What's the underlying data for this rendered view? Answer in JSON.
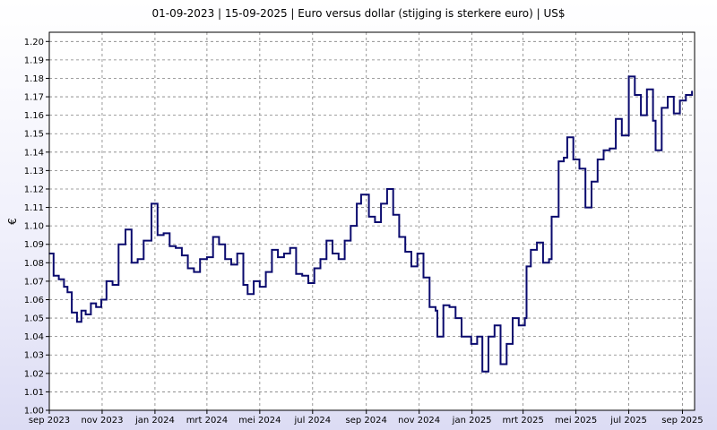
{
  "chart_data": {
    "type": "line",
    "title": "01-09-2023 | 15-09-2025 | Euro versus dollar (stijging is sterkere euro) | US$",
    "xlabel": "",
    "ylabel": "€",
    "ylim": [
      1.0,
      1.205
    ],
    "yticks": [
      "1.00",
      "1.01",
      "1.02",
      "1.03",
      "1.04",
      "1.05",
      "1.06",
      "1.07",
      "1.08",
      "1.09",
      "1.10",
      "1.11",
      "1.12",
      "1.13",
      "1.14",
      "1.15",
      "1.16",
      "1.17",
      "1.18",
      "1.19",
      "1.20"
    ],
    "xlim": [
      "2023-09-01",
      "2025-09-15"
    ],
    "xticks": [
      {
        "date": "2023-09-01",
        "label": "sep 2023"
      },
      {
        "date": "2023-11-01",
        "label": "nov 2023"
      },
      {
        "date": "2024-01-01",
        "label": "jan 2024"
      },
      {
        "date": "2024-03-01",
        "label": "mrt 2024"
      },
      {
        "date": "2024-05-01",
        "label": "mei 2024"
      },
      {
        "date": "2024-07-01",
        "label": "jul 2024"
      },
      {
        "date": "2024-09-01",
        "label": "sep 2024"
      },
      {
        "date": "2024-11-01",
        "label": "nov 2024"
      },
      {
        "date": "2025-01-01",
        "label": "jan 2025"
      },
      {
        "date": "2025-03-01",
        "label": "mrt 2025"
      },
      {
        "date": "2025-05-01",
        "label": "mei 2025"
      },
      {
        "date": "2025-07-01",
        "label": "jul 2025"
      },
      {
        "date": "2025-09-01",
        "label": "sep 2025"
      }
    ],
    "grid": true,
    "colors": {
      "line": "#0a0a6e",
      "grid": "#808080",
      "frame": "#000000",
      "plot_bg": "#ffffff"
    },
    "series": [
      {
        "values": [
          [
            "2023-09-01",
            1.085
          ],
          [
            "2023-09-06",
            1.073
          ],
          [
            "2023-09-12",
            1.071
          ],
          [
            "2023-09-18",
            1.067
          ],
          [
            "2023-09-22",
            1.064
          ],
          [
            "2023-09-27",
            1.053
          ],
          [
            "2023-10-03",
            1.048
          ],
          [
            "2023-10-08",
            1.054
          ],
          [
            "2023-10-13",
            1.052
          ],
          [
            "2023-10-19",
            1.058
          ],
          [
            "2023-10-25",
            1.056
          ],
          [
            "2023-10-31",
            1.06
          ],
          [
            "2023-11-06",
            1.07
          ],
          [
            "2023-11-13",
            1.068
          ],
          [
            "2023-11-20",
            1.09
          ],
          [
            "2023-11-28",
            1.098
          ],
          [
            "2023-12-05",
            1.08
          ],
          [
            "2023-12-12",
            1.082
          ],
          [
            "2023-12-19",
            1.092
          ],
          [
            "2023-12-28",
            1.112
          ],
          [
            "2024-01-04",
            1.095
          ],
          [
            "2024-01-11",
            1.096
          ],
          [
            "2024-01-18",
            1.089
          ],
          [
            "2024-01-25",
            1.088
          ],
          [
            "2024-02-01",
            1.084
          ],
          [
            "2024-02-08",
            1.077
          ],
          [
            "2024-02-15",
            1.075
          ],
          [
            "2024-02-22",
            1.082
          ],
          [
            "2024-03-01",
            1.083
          ],
          [
            "2024-03-08",
            1.094
          ],
          [
            "2024-03-15",
            1.09
          ],
          [
            "2024-03-22",
            1.082
          ],
          [
            "2024-03-29",
            1.079
          ],
          [
            "2024-04-05",
            1.085
          ],
          [
            "2024-04-12",
            1.068
          ],
          [
            "2024-04-17",
            1.063
          ],
          [
            "2024-04-24",
            1.07
          ],
          [
            "2024-05-01",
            1.067
          ],
          [
            "2024-05-08",
            1.075
          ],
          [
            "2024-05-15",
            1.087
          ],
          [
            "2024-05-22",
            1.083
          ],
          [
            "2024-05-29",
            1.085
          ],
          [
            "2024-06-05",
            1.088
          ],
          [
            "2024-06-12",
            1.074
          ],
          [
            "2024-06-19",
            1.073
          ],
          [
            "2024-06-26",
            1.069
          ],
          [
            "2024-07-03",
            1.077
          ],
          [
            "2024-07-10",
            1.082
          ],
          [
            "2024-07-17",
            1.092
          ],
          [
            "2024-07-24",
            1.085
          ],
          [
            "2024-07-31",
            1.082
          ],
          [
            "2024-08-07",
            1.092
          ],
          [
            "2024-08-14",
            1.1
          ],
          [
            "2024-08-21",
            1.112
          ],
          [
            "2024-08-26",
            1.117
          ],
          [
            "2024-09-04",
            1.105
          ],
          [
            "2024-09-11",
            1.102
          ],
          [
            "2024-09-18",
            1.112
          ],
          [
            "2024-09-25",
            1.12
          ],
          [
            "2024-10-02",
            1.106
          ],
          [
            "2024-10-09",
            1.094
          ],
          [
            "2024-10-16",
            1.086
          ],
          [
            "2024-10-23",
            1.078
          ],
          [
            "2024-10-30",
            1.085
          ],
          [
            "2024-11-06",
            1.072
          ],
          [
            "2024-11-13",
            1.056
          ],
          [
            "2024-11-20",
            1.054
          ],
          [
            "2024-11-22",
            1.04
          ],
          [
            "2024-11-29",
            1.057
          ],
          [
            "2024-12-06",
            1.056
          ],
          [
            "2024-12-13",
            1.05
          ],
          [
            "2024-12-20",
            1.04
          ],
          [
            "2024-12-31",
            1.036
          ],
          [
            "2025-01-07",
            1.04
          ],
          [
            "2025-01-13",
            1.021
          ],
          [
            "2025-01-20",
            1.04
          ],
          [
            "2025-01-27",
            1.046
          ],
          [
            "2025-02-03",
            1.025
          ],
          [
            "2025-02-10",
            1.036
          ],
          [
            "2025-02-17",
            1.05
          ],
          [
            "2025-02-24",
            1.046
          ],
          [
            "2025-03-03",
            1.05
          ],
          [
            "2025-03-05",
            1.078
          ],
          [
            "2025-03-10",
            1.087
          ],
          [
            "2025-03-17",
            1.091
          ],
          [
            "2025-03-24",
            1.08
          ],
          [
            "2025-03-31",
            1.082
          ],
          [
            "2025-04-03",
            1.105
          ],
          [
            "2025-04-11",
            1.135
          ],
          [
            "2025-04-17",
            1.137
          ],
          [
            "2025-04-21",
            1.148
          ],
          [
            "2025-04-28",
            1.136
          ],
          [
            "2025-05-05",
            1.131
          ],
          [
            "2025-05-12",
            1.11
          ],
          [
            "2025-05-19",
            1.124
          ],
          [
            "2025-05-26",
            1.136
          ],
          [
            "2025-06-02",
            1.141
          ],
          [
            "2025-06-09",
            1.142
          ],
          [
            "2025-06-16",
            1.158
          ],
          [
            "2025-06-23",
            1.149
          ],
          [
            "2025-07-01",
            1.181
          ],
          [
            "2025-07-08",
            1.171
          ],
          [
            "2025-07-15",
            1.16
          ],
          [
            "2025-07-22",
            1.174
          ],
          [
            "2025-07-29",
            1.157
          ],
          [
            "2025-08-01",
            1.141
          ],
          [
            "2025-08-08",
            1.164
          ],
          [
            "2025-08-15",
            1.17
          ],
          [
            "2025-08-22",
            1.161
          ],
          [
            "2025-08-29",
            1.168
          ],
          [
            "2025-09-05",
            1.171
          ],
          [
            "2025-09-12",
            1.173
          ]
        ]
      }
    ]
  }
}
